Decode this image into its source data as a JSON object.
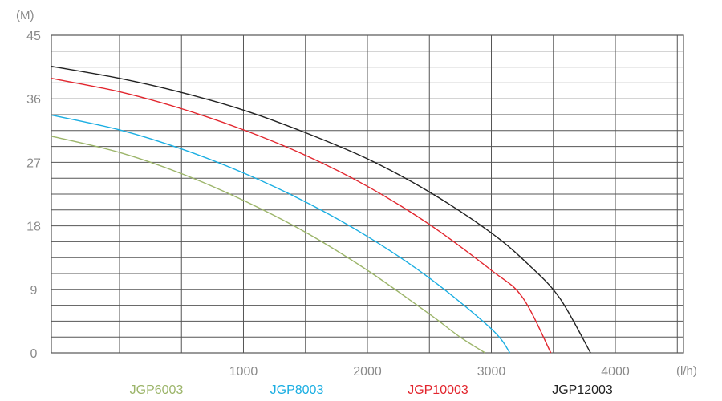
{
  "chart_data": {
    "type": "line",
    "title": "",
    "ylabel": "(M)",
    "xlabel": "(l/h)",
    "xlim": [
      -550,
      4550
    ],
    "ylim": [
      0,
      45
    ],
    "x_ticks": [
      {
        "value": 1000,
        "label": "1000"
      },
      {
        "value": 2000,
        "label": "2000"
      },
      {
        "value": 3000,
        "label": "3000"
      },
      {
        "value": 4000,
        "label": "4000"
      }
    ],
    "y_ticks": [
      {
        "value": 0,
        "label": "0"
      },
      {
        "value": 9,
        "label": "9"
      },
      {
        "value": 18,
        "label": "18"
      },
      {
        "value": 27,
        "label": "27"
      },
      {
        "value": 36,
        "label": "36"
      },
      {
        "value": 45,
        "label": "45"
      }
    ],
    "grid": true,
    "legend_position": "bottom",
    "series": [
      {
        "name": "JGP6003",
        "color": "#9cb56a",
        "x": [
          -550,
          0,
          500,
          1000,
          1500,
          2000,
          2500,
          2750,
          2950
        ],
        "y": [
          30.7,
          28.4,
          25.4,
          21.6,
          17.1,
          11.7,
          5.5,
          2.2,
          0
        ]
      },
      {
        "name": "JGP8003",
        "color": "#1aaee2",
        "x": [
          -550,
          0,
          500,
          1000,
          1500,
          2000,
          2500,
          3000,
          3150
        ],
        "y": [
          33.7,
          31.6,
          28.9,
          25.5,
          21.4,
          16.5,
          10.6,
          3.4,
          0
        ]
      },
      {
        "name": "JGP10003",
        "color": "#e2262e",
        "x": [
          -550,
          0,
          500,
          1000,
          1500,
          2000,
          2500,
          3000,
          3250,
          3480
        ],
        "y": [
          38.9,
          37.0,
          34.6,
          31.6,
          28.0,
          23.6,
          18.2,
          11.7,
          7.9,
          0
        ]
      },
      {
        "name": "JGP12003",
        "color": "#222222",
        "x": [
          -550,
          0,
          500,
          1000,
          1500,
          2000,
          2500,
          3000,
          3300,
          3550,
          3800
        ],
        "y": [
          40.6,
          38.9,
          36.9,
          34.4,
          31.2,
          27.5,
          22.8,
          17.0,
          12.5,
          7.8,
          0
        ]
      }
    ]
  }
}
